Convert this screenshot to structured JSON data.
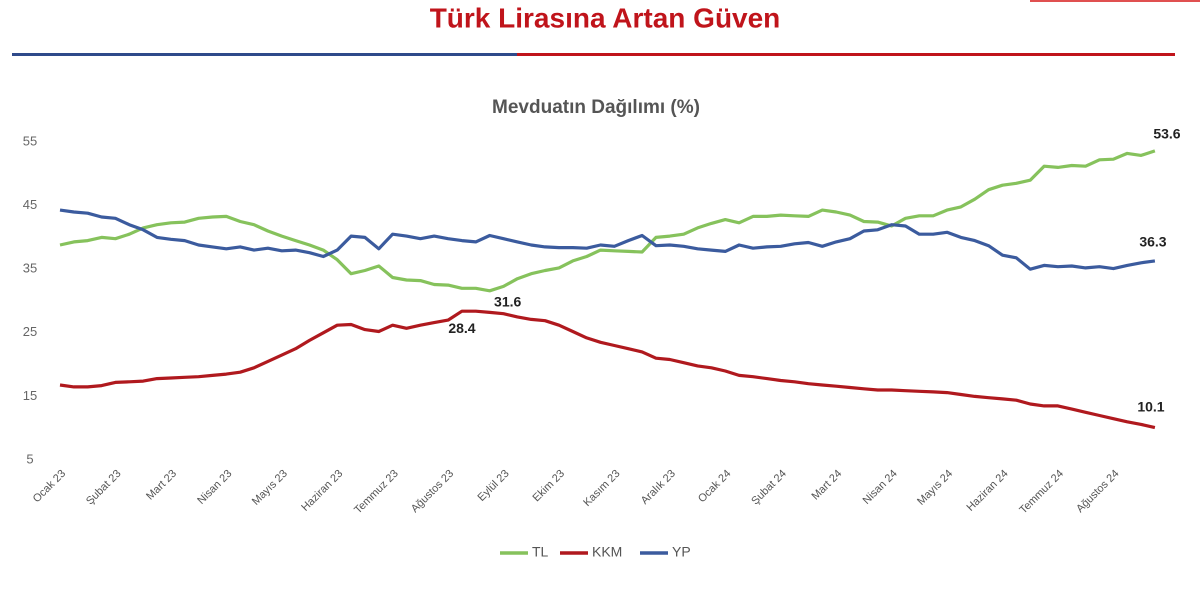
{
  "header": {
    "title": "Türk Lirasına Artan Güven"
  },
  "chart_data": {
    "type": "line",
    "title": "Mevduatın Dağılımı (%)",
    "categories": [
      "Ocak 23",
      null,
      null,
      null,
      "Şubat 23",
      null,
      null,
      null,
      "Mart 23",
      null,
      null,
      null,
      "Nisan 23",
      null,
      null,
      null,
      "Mayıs 23",
      null,
      null,
      null,
      "Haziran 23",
      null,
      null,
      null,
      "Temmuz 23",
      null,
      null,
      null,
      "Ağustos 23",
      null,
      null,
      null,
      "Eylül 23",
      null,
      null,
      null,
      "Ekim 23",
      null,
      null,
      null,
      "Kasım 23",
      null,
      null,
      null,
      "Aralık 23",
      null,
      null,
      null,
      "Ocak 24",
      null,
      null,
      null,
      "Şubat 24",
      null,
      null,
      null,
      "Mart 24",
      null,
      null,
      null,
      "Nisan 24",
      null,
      null,
      null,
      "Mayıs 24",
      null,
      null,
      null,
      "Haziran 24",
      null,
      null,
      null,
      "Temmuz 24",
      null,
      null,
      null,
      "Ağustos 24",
      null,
      null,
      null
    ],
    "series": [
      {
        "name": "TL",
        "color": "#86c25c",
        "values": [
          38.8,
          39.3,
          39.5,
          40.0,
          39.8,
          40.5,
          41.5,
          42.0,
          42.3,
          42.4,
          43.0,
          43.2,
          43.3,
          42.5,
          42.0,
          41.0,
          40.2,
          39.5,
          38.8,
          38.0,
          36.5,
          34.3,
          34.8,
          35.5,
          33.7,
          33.3,
          33.2,
          32.6,
          32.5,
          32.0,
          32.0,
          31.6,
          32.3,
          33.5,
          34.3,
          34.8,
          35.2,
          36.3,
          37.0,
          38.0,
          37.9,
          37.8,
          37.7,
          40.0,
          40.2,
          40.5,
          41.5,
          42.2,
          42.8,
          42.3,
          43.3,
          43.3,
          43.5,
          43.4,
          43.3,
          44.3,
          44.0,
          43.5,
          42.5,
          42.4,
          41.8,
          43.0,
          43.4,
          43.4,
          44.3,
          44.8,
          46.0,
          47.5,
          48.2,
          48.5,
          49.0,
          51.2,
          51.0,
          51.3,
          51.2,
          52.2,
          52.3,
          53.2,
          52.9,
          53.6
        ]
      },
      {
        "name": "KKM",
        "color": "#b0191e",
        "values": [
          16.8,
          16.5,
          16.5,
          16.7,
          17.2,
          17.3,
          17.4,
          17.8,
          17.9,
          18.0,
          18.1,
          18.3,
          18.5,
          18.8,
          19.5,
          20.5,
          21.5,
          22.5,
          23.8,
          25.0,
          26.2,
          26.3,
          25.5,
          25.2,
          26.2,
          25.7,
          26.2,
          26.6,
          27.0,
          28.4,
          28.4,
          28.2,
          28.0,
          27.5,
          27.1,
          26.9,
          26.2,
          25.2,
          24.2,
          23.5,
          23.0,
          22.5,
          22.0,
          21.0,
          20.8,
          20.3,
          19.8,
          19.5,
          19.0,
          18.3,
          18.1,
          17.8,
          17.5,
          17.3,
          17.0,
          16.8,
          16.6,
          16.4,
          16.2,
          16.0,
          16.0,
          15.9,
          15.8,
          15.7,
          15.6,
          15.3,
          15.0,
          14.8,
          14.6,
          14.4,
          13.8,
          13.5,
          13.5,
          13.0,
          12.5,
          12.0,
          11.5,
          11.0,
          10.6,
          10.1
        ]
      },
      {
        "name": "YP",
        "color": "#3b5b9e",
        "values": [
          44.3,
          44.0,
          43.8,
          43.2,
          43.0,
          42.0,
          41.2,
          40.0,
          39.7,
          39.5,
          38.8,
          38.5,
          38.2,
          38.5,
          38.0,
          38.3,
          37.9,
          38.0,
          37.6,
          37.0,
          38.0,
          40.2,
          40.0,
          38.2,
          40.5,
          40.2,
          39.8,
          40.2,
          39.8,
          39.5,
          39.3,
          40.3,
          39.8,
          39.3,
          38.8,
          38.5,
          38.4,
          38.4,
          38.3,
          38.8,
          38.6,
          39.5,
          40.3,
          38.7,
          38.8,
          38.6,
          38.2,
          38.0,
          37.8,
          38.8,
          38.3,
          38.5,
          38.6,
          39.0,
          39.2,
          38.6,
          39.3,
          39.8,
          41.0,
          41.2,
          42.0,
          41.8,
          40.5,
          40.5,
          40.8,
          40.0,
          39.5,
          38.7,
          37.2,
          36.8,
          35.0,
          35.6,
          35.4,
          35.5,
          35.2,
          35.4,
          35.1,
          35.6,
          36.0,
          36.3
        ]
      }
    ],
    "ylim": [
      5,
      55
    ],
    "yticks": [
      5,
      15,
      25,
      35,
      45,
      55
    ],
    "grid": false,
    "legend": "bottom"
  }
}
